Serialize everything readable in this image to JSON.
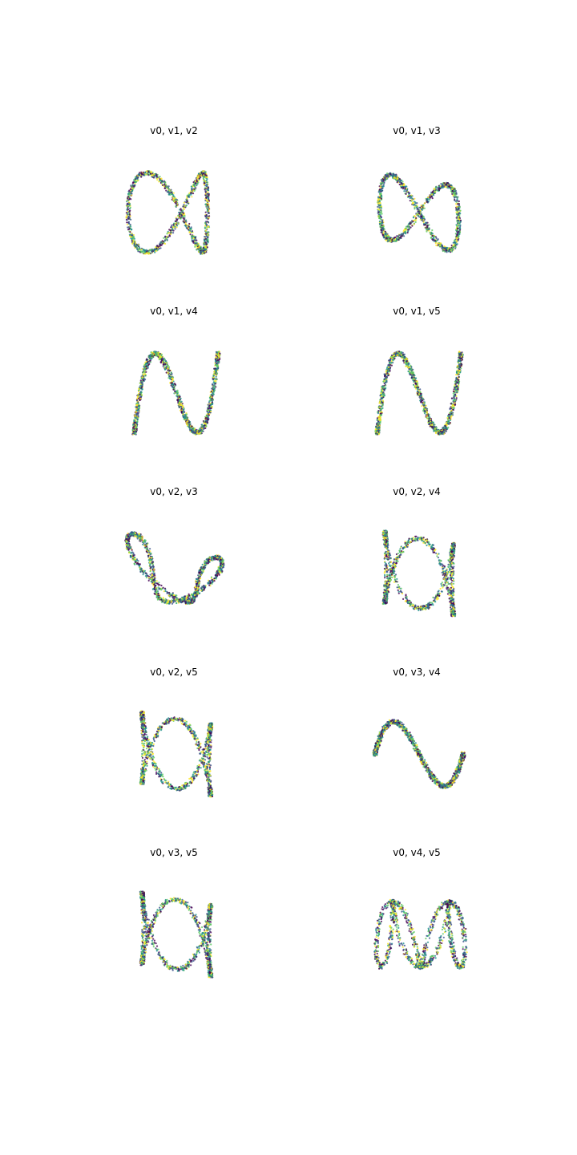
{
  "figure": {
    "background": "#ffffff",
    "colormap": [
      "#440154",
      "#3b528b",
      "#21918c",
      "#5ec962",
      "#fde725"
    ]
  },
  "chart_data": [
    {
      "type": "scatter",
      "title": "v0, v1, v2",
      "projection": "3d",
      "axes_visible": false,
      "shape": "s-curve"
    },
    {
      "type": "scatter",
      "title": "v0, v1, v3",
      "projection": "3d",
      "axes_visible": false,
      "shape": "tilted-s-loop"
    },
    {
      "type": "scatter",
      "title": "v0, v1, v4",
      "projection": "3d",
      "axes_visible": false,
      "shape": "double-wave"
    },
    {
      "type": "scatter",
      "title": "v0, v1, v5",
      "projection": "3d",
      "axes_visible": false,
      "shape": "double-wave"
    },
    {
      "type": "scatter",
      "title": "v0, v2, v3",
      "projection": "3d",
      "axes_visible": false,
      "shape": "loops"
    },
    {
      "type": "scatter",
      "title": "v0, v2, v4",
      "projection": "3d",
      "axes_visible": false,
      "shape": "twisted-loops"
    },
    {
      "type": "scatter",
      "title": "v0, v2, v5",
      "projection": "3d",
      "axes_visible": false,
      "shape": "twisted-loops"
    },
    {
      "type": "scatter",
      "title": "v0, v3, v4",
      "projection": "3d",
      "axes_visible": false,
      "shape": "bow"
    },
    {
      "type": "scatter",
      "title": "v0, v3, v5",
      "projection": "3d",
      "axes_visible": false,
      "shape": "twisted-loops"
    },
    {
      "type": "scatter",
      "title": "v0, v4, v5",
      "projection": "3d",
      "axes_visible": false,
      "shape": "coil"
    }
  ]
}
